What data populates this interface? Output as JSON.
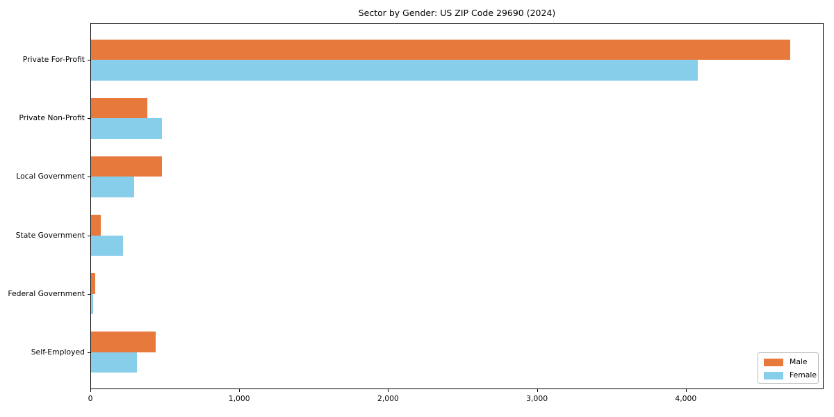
{
  "title": "Sector by Gender: US ZIP Code 29690 (2024)",
  "chart_data": {
    "type": "bar",
    "orientation": "horizontal",
    "title": "Sector by Gender: US ZIP Code 29690 (2024)",
    "categories": [
      "Private For-Profit",
      "Private Non-Profit",
      "Local Government",
      "State Government",
      "Federal Government",
      "Self-Employed"
    ],
    "series": [
      {
        "name": "Male",
        "color": "#E8793C",
        "values": [
          4700,
          385,
          480,
          70,
          35,
          440
        ]
      },
      {
        "name": "Female",
        "color": "#87CEEB",
        "values": [
          4080,
          480,
          295,
          220,
          18,
          315
        ]
      }
    ],
    "xlabel": "",
    "ylabel": "",
    "xlim": [
      0,
      4925
    ],
    "xticks": [
      0,
      1000,
      2000,
      3000,
      4000
    ],
    "xtick_labels": [
      "0",
      "1,000",
      "2,000",
      "3,000",
      "4,000"
    ],
    "bar_unit_height": 0.35,
    "grid": false,
    "legend": {
      "position": "lower right"
    }
  }
}
